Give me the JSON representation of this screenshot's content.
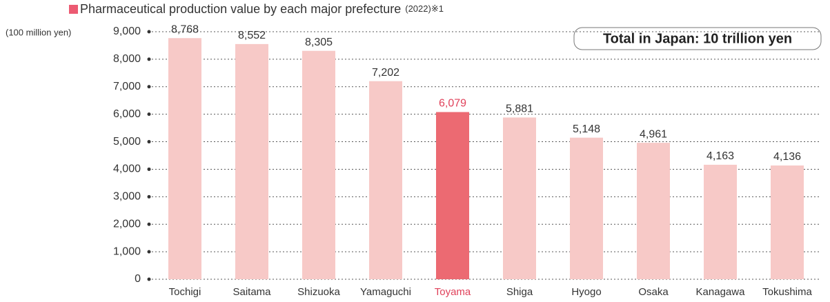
{
  "chart_data": {
    "type": "bar",
    "title": "Pharmaceutical production value by each major prefecture",
    "title_note": "(2022)※1",
    "y_label": "(100 million yen)",
    "annotation": "Total in Japan: 10 trillion yen",
    "categories": [
      "Tochigi",
      "Saitama",
      "Shizuoka",
      "Yamaguchi",
      "Toyama",
      "Shiga",
      "Hyogo",
      "Osaka",
      "Kanagawa",
      "Tokushima"
    ],
    "values": [
      8768,
      8552,
      8305,
      7202,
      6079,
      5881,
      5148,
      4961,
      4163,
      4136
    ],
    "value_labels": [
      "8,768",
      "8,552",
      "8,305",
      "7,202",
      "6,079",
      "5,881",
      "5,148",
      "4,961",
      "4,163",
      "4,136"
    ],
    "bar_colors": [
      "#f7c9c7",
      "#f7c9c7",
      "#f7c9c7",
      "#f7c9c7",
      "#ec6a72",
      "#f7c9c7",
      "#f7c9c7",
      "#f7c9c7",
      "#f7c9c7",
      "#f7c9c7"
    ],
    "label_colors": [
      "#333333",
      "#333333",
      "#333333",
      "#333333",
      "#e0415a",
      "#333333",
      "#333333",
      "#333333",
      "#333333",
      "#333333"
    ],
    "ylim": [
      0,
      9000
    ],
    "yticks": [
      0,
      {
        "value": 1000,
        "label": "1,000"
      },
      {
        "value": 2000,
        "label": "2,000"
      },
      {
        "value": 3000,
        "label": "3,000"
      },
      {
        "value": 4000,
        "label": "4,000"
      },
      {
        "value": 5000,
        "label": "5,000"
      },
      {
        "value": 6000,
        "label": "6,000"
      },
      {
        "value": 7000,
        "label": "7,000"
      },
      {
        "value": 8000,
        "label": "8,000"
      },
      {
        "value": 9000,
        "label": "9,000"
      }
    ],
    "grid": true
  }
}
